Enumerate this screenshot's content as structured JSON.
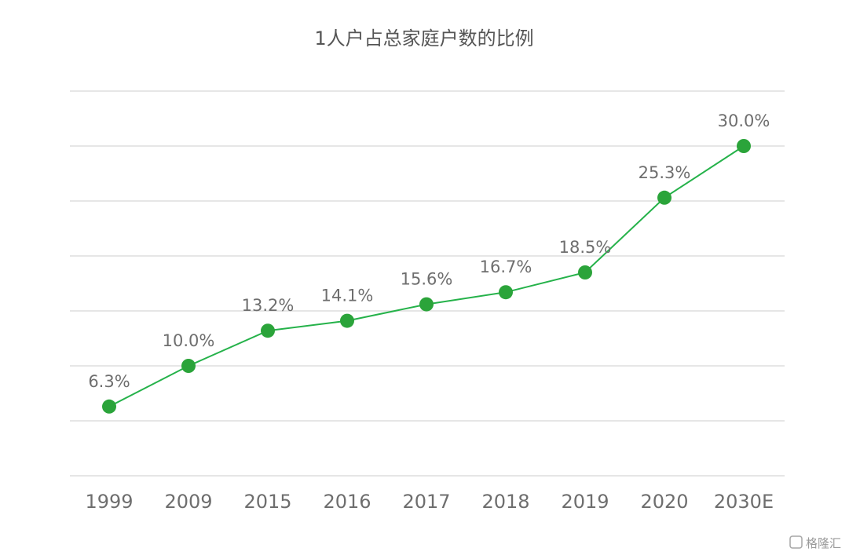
{
  "chart_data": {
    "type": "line",
    "title": "1人户占总家庭户数的比例",
    "xlabel": "",
    "ylabel": "",
    "categories": [
      "1999",
      "2009",
      "2015",
      "2016",
      "2017",
      "2018",
      "2019",
      "2020",
      "2030E"
    ],
    "series": [
      {
        "values": [
          6.3,
          10.0,
          13.2,
          14.1,
          15.6,
          16.7,
          18.5,
          25.3,
          30.0
        ],
        "data_labels": [
          "6.3%",
          "10.0%",
          "13.2%",
          "14.1%",
          "15.6%",
          "16.7%",
          "18.5%",
          "25.3%",
          "30.0%"
        ],
        "color": "#2ba43a",
        "line_color": "#25b24a"
      }
    ],
    "ylim": [
      0,
      35
    ],
    "grid": true,
    "gridline_count": 8,
    "gridline_color": "#dddddd",
    "legend": "none"
  },
  "watermark": {
    "icon": "g-logo-icon",
    "text": "格隆汇"
  }
}
